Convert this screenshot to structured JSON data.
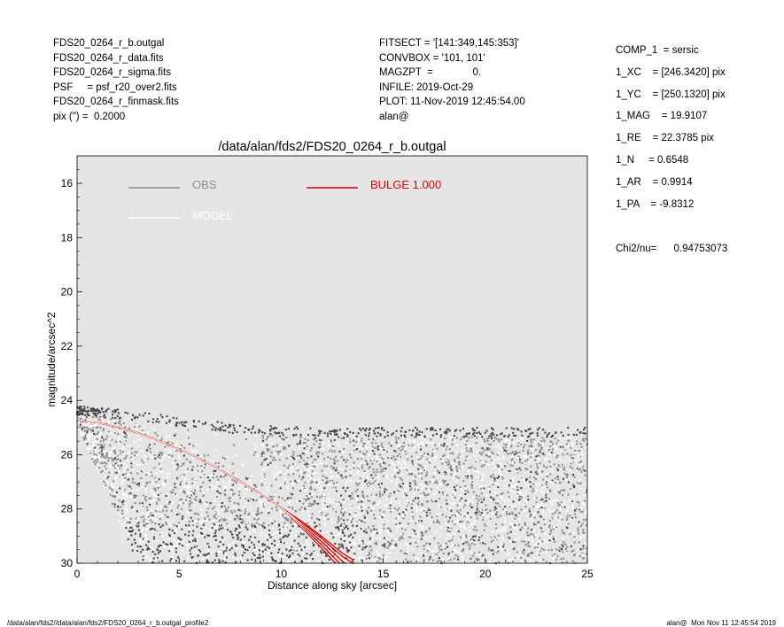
{
  "header_left": [
    "FDS20_0264_r_b.outgal",
    "FDS20_0264_r_data.fits",
    "FDS20_0264_r_sigma.fits",
    "PSF     = psf_r20_over2.fits",
    "FDS20_0264_r_finmask.fits",
    "pix (\") =  0.2000"
  ],
  "header_mid": [
    "FITSECT = '[141:349,145:353]'",
    "CONVBOX = '101, 101'",
    "MAGZPT  =              0.",
    "INFILE: 2019-Oct-29",
    "PLOT: 11-Nov-2019 12:45:54.00",
    "alan@"
  ],
  "params": [
    "COMP_1  = sersic",
    "1_XC    = [246.3420] pix",
    "1_YC    = [250.1320] pix",
    "1_MAG    = 19.9107",
    "1_RE    = 22.3785 pix",
    "1_N     = 0.6548",
    "1_AR    = 0.9914",
    "1_PA    = -9.8312"
  ],
  "chi2": "Chi2/nu=      0.94753073",
  "footer_left": "/data/alan/fds2//data/alan/fds2/FDS20_0264_r_b.outgal_profile2",
  "footer_right": "alan@  Mon Nov 11 12:45:54 2019",
  "colors": {
    "panel_bg": "#e5e5e5",
    "obs": "#8c8c8c",
    "obs_dark": "#444444",
    "model": "#ffffff",
    "bulge": "#e00000"
  },
  "chart_data": {
    "type": "scatter",
    "title": "/data/alan/fds2/FDS20_0264_r_b.outgal",
    "xlabel": "Distance along sky [arcsec]",
    "ylabel": "magnitude/arcsec^2",
    "xlim": [
      0,
      25
    ],
    "ylim": [
      30,
      15
    ],
    "y_inverted": true,
    "grid": false,
    "legend_placement": "top",
    "xticks": [
      0,
      5,
      10,
      15,
      20,
      25
    ],
    "yticks": [
      16,
      18,
      20,
      22,
      24,
      26,
      28,
      30
    ],
    "legend": [
      {
        "label": "OBS",
        "color": "#8c8c8c"
      },
      {
        "label": "MODEL",
        "color": "#ffffff"
      },
      {
        "label": "BULGE  1.000",
        "color": "#e00000"
      }
    ],
    "bulge_profile": {
      "x": [
        0,
        1,
        2,
        3,
        4,
        5,
        6,
        7,
        8,
        9,
        10,
        11,
        12,
        13,
        13.5
      ],
      "y": [
        24.75,
        24.82,
        24.98,
        25.2,
        25.48,
        25.8,
        26.15,
        26.55,
        26.98,
        27.45,
        27.95,
        28.5,
        29.1,
        29.75,
        30.0
      ]
    },
    "obs_cloud": {
      "description_points": [
        {
          "x": 0,
          "y_low": 24.2,
          "y_high": 24.9
        },
        {
          "x": 3,
          "y_low": 24.4,
          "y_high": 30.0
        },
        {
          "x": 8,
          "y_low": 24.9,
          "y_high": 30.0
        },
        {
          "x": 12,
          "y_low": 25.0,
          "y_high": 30.0
        },
        {
          "x": 20,
          "y_low": 25.0,
          "y_high": 30.0
        },
        {
          "x": 25,
          "y_low": 25.0,
          "y_high": 30.0
        }
      ]
    }
  }
}
